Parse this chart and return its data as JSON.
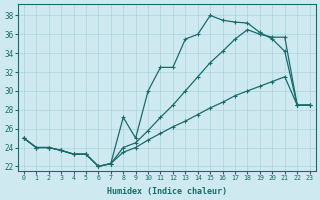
{
  "xlabel": "Humidex (Indice chaleur)",
  "xlim": [
    -0.5,
    23.5
  ],
  "ylim": [
    21.5,
    39.2
  ],
  "yticks": [
    22,
    24,
    26,
    28,
    30,
    32,
    34,
    36,
    38
  ],
  "xticks": [
    0,
    1,
    2,
    3,
    4,
    5,
    6,
    7,
    8,
    9,
    10,
    11,
    12,
    13,
    14,
    15,
    16,
    17,
    18,
    19,
    20,
    21,
    22,
    23
  ],
  "bg_color": "#ceeaf0",
  "grid_color": "#aad4dc",
  "line_color": "#1a6b6b",
  "line1_y": [
    25.0,
    24.0,
    24.0,
    23.7,
    23.3,
    23.3,
    22.0,
    22.3,
    27.2,
    25.0,
    30.0,
    32.5,
    32.5,
    35.5,
    36.0,
    38.0,
    37.5,
    37.3,
    37.2,
    36.2,
    35.5,
    34.2,
    28.5,
    28.5
  ],
  "line2_y": [
    25.0,
    24.0,
    24.0,
    23.7,
    23.3,
    23.3,
    22.0,
    22.3,
    24.0,
    24.5,
    25.8,
    27.2,
    28.5,
    30.0,
    31.5,
    33.0,
    34.2,
    35.5,
    36.5,
    36.0,
    35.7,
    35.7,
    28.5,
    28.5
  ],
  "line3_y": [
    25.0,
    24.0,
    24.0,
    23.7,
    23.3,
    23.3,
    22.0,
    22.3,
    23.5,
    24.0,
    24.8,
    25.5,
    26.2,
    26.8,
    27.5,
    28.2,
    28.8,
    29.5,
    30.0,
    30.5,
    31.0,
    31.5,
    28.5,
    28.5
  ],
  "lw": 0.9,
  "ms": 3.5
}
